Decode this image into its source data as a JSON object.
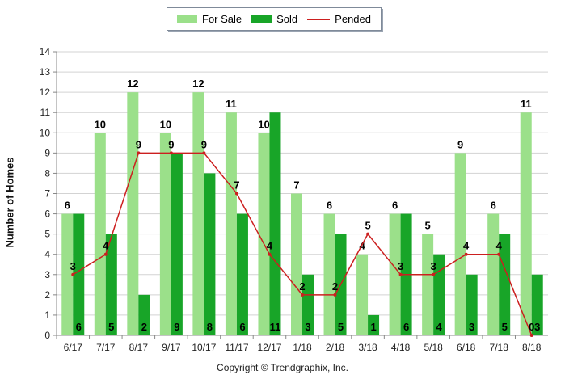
{
  "chart_data": {
    "type": "bar",
    "categories": [
      "6/17",
      "7/17",
      "8/17",
      "9/17",
      "10/17",
      "11/17",
      "12/17",
      "1/18",
      "2/18",
      "3/18",
      "4/18",
      "5/18",
      "6/18",
      "7/18",
      "8/18"
    ],
    "series": [
      {
        "name": "For Sale",
        "kind": "bar",
        "color": "#9be08a",
        "values": [
          6,
          10,
          12,
          10,
          12,
          11,
          10,
          7,
          6,
          4,
          6,
          5,
          9,
          6,
          11
        ]
      },
      {
        "name": "Sold",
        "kind": "bar",
        "color": "#18a528",
        "values": [
          6,
          5,
          2,
          9,
          8,
          6,
          11,
          3,
          5,
          1,
          6,
          4,
          3,
          5,
          3
        ]
      },
      {
        "name": "Pended",
        "kind": "line",
        "color": "#cc1f1f",
        "values": [
          3,
          4,
          9,
          9,
          9,
          7,
          4,
          2,
          2,
          5,
          3,
          3,
          4,
          4,
          0
        ]
      }
    ],
    "ylabel": "Number of Homes",
    "xlabel": "",
    "ylim": [
      0,
      14
    ],
    "yticks": [
      0,
      1,
      2,
      3,
      4,
      5,
      6,
      7,
      8,
      9,
      10,
      11,
      12,
      13,
      14
    ],
    "grid": true,
    "legend_position": "top"
  },
  "footer": {
    "copyright": "Copyright © Trendgraphix, Inc."
  }
}
